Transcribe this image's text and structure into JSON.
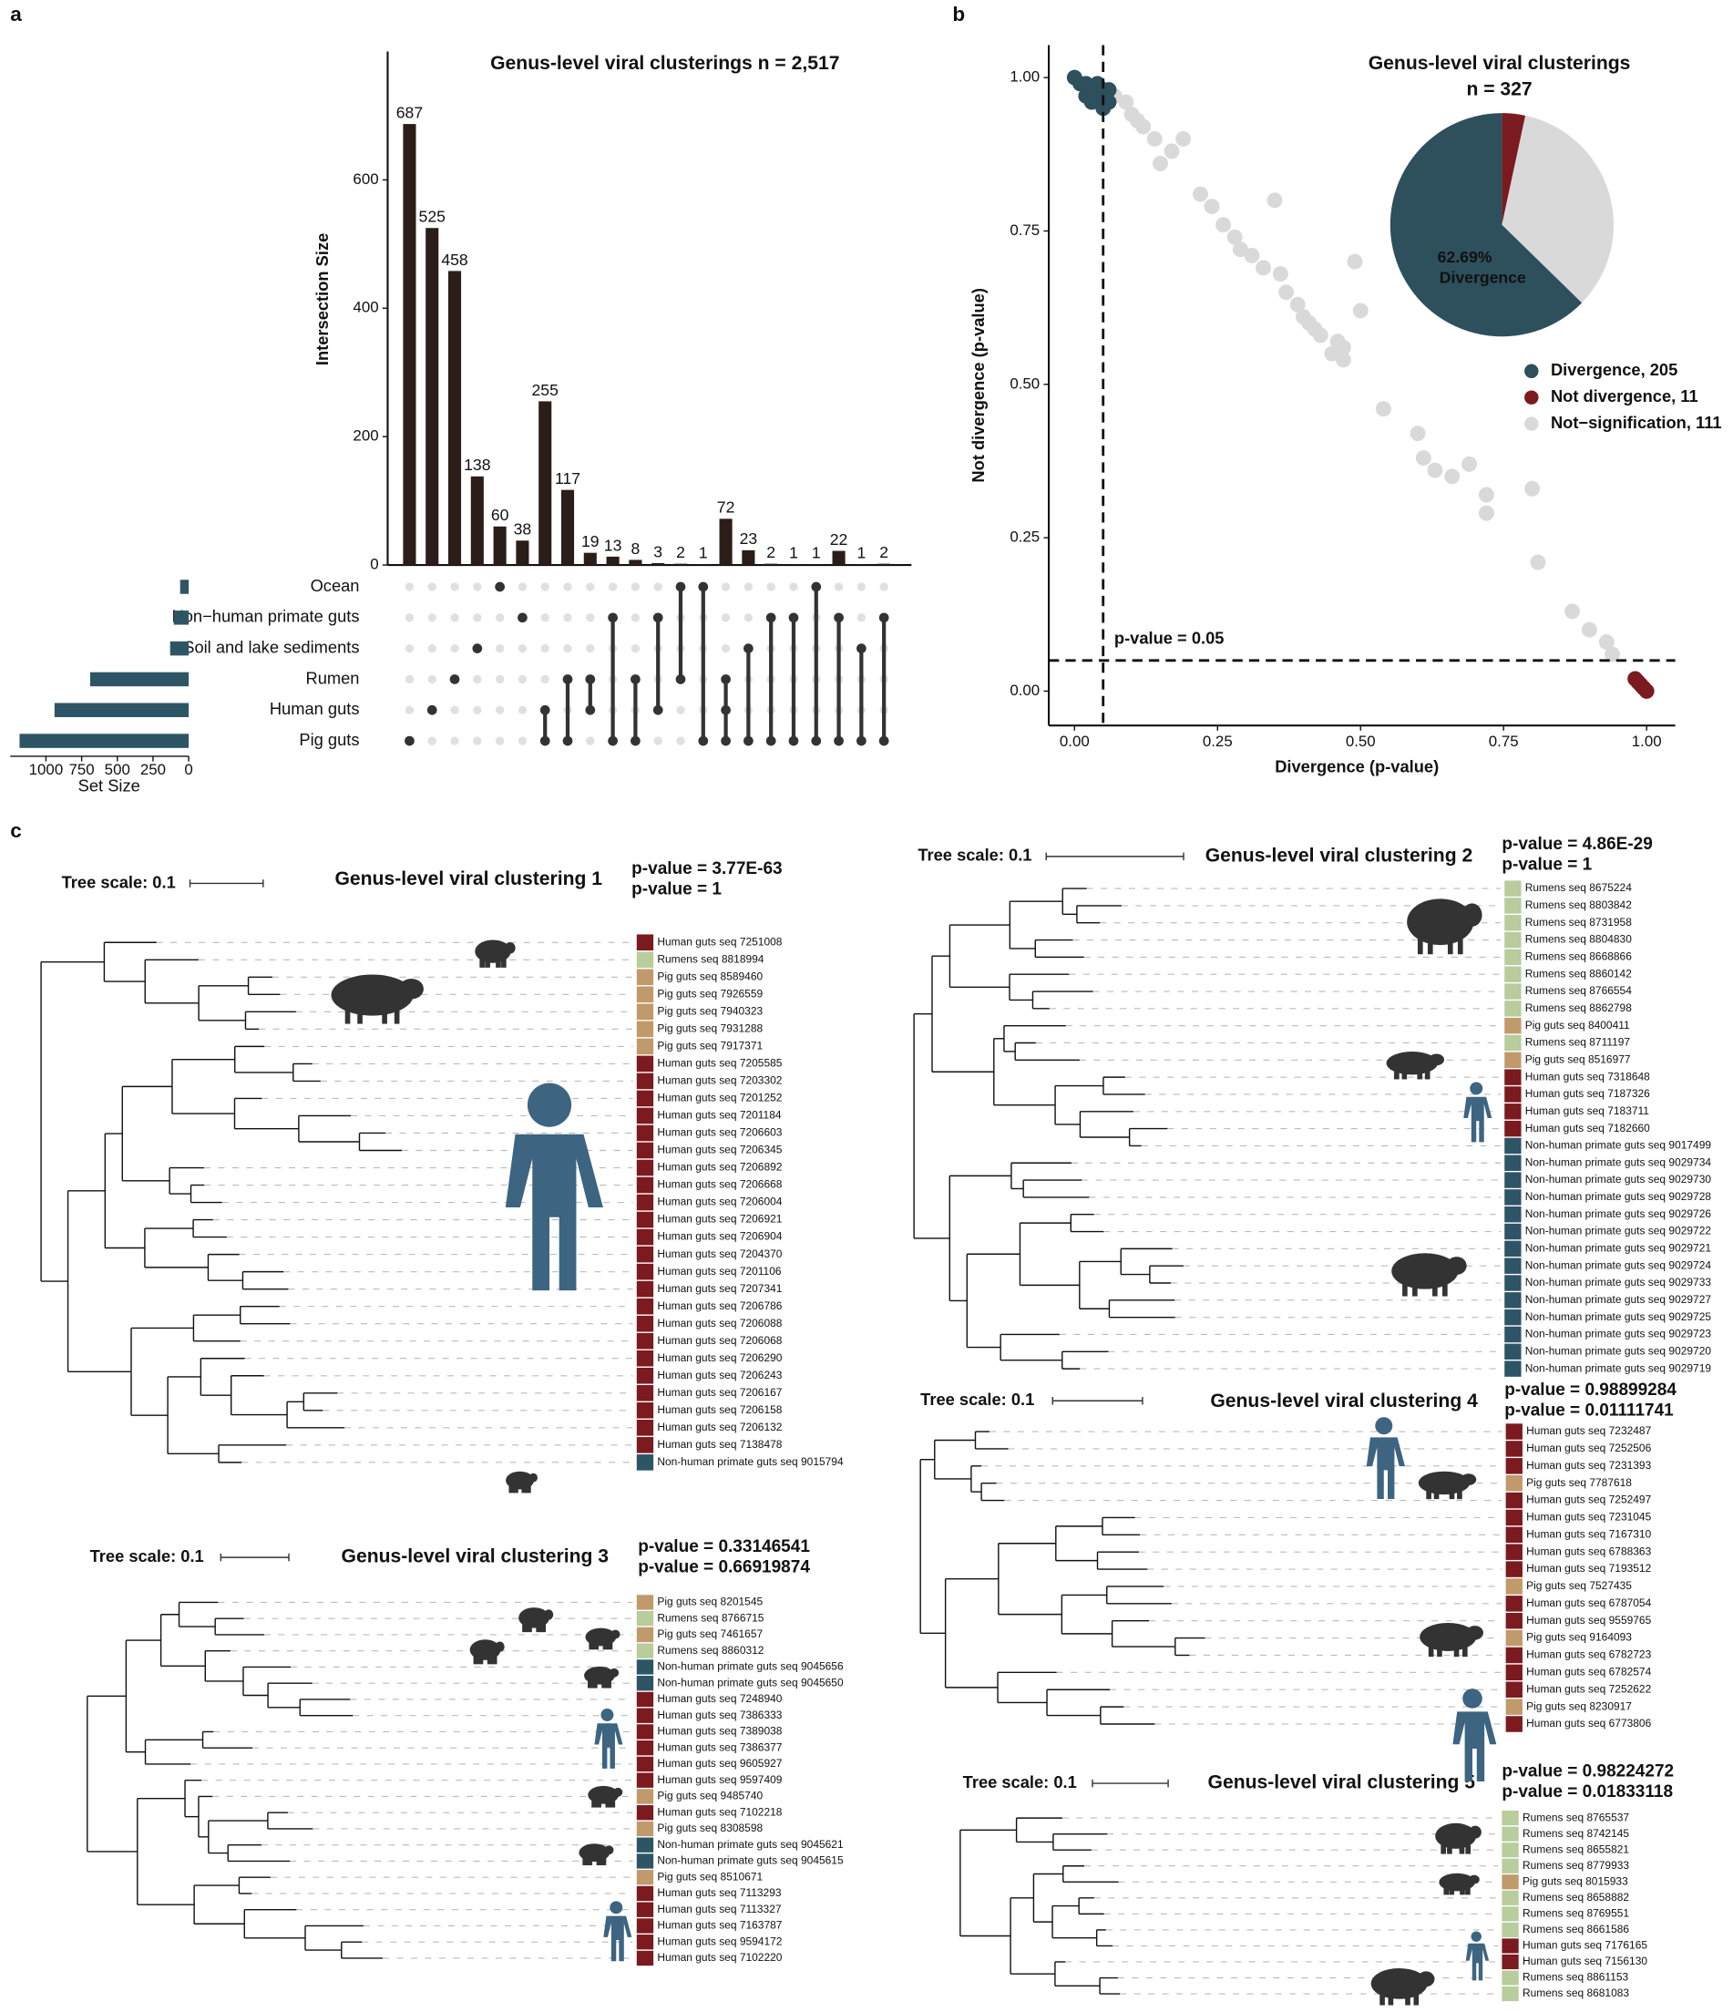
{
  "panel_labels": [
    "a",
    "b",
    "c"
  ],
  "chart_data": [
    {
      "type": "upset",
      "title": "Genus-level viral clusterings n = 2,517",
      "ylabel": "Intersection Size",
      "ylim": [
        0,
        800
      ],
      "yticks": [
        0,
        200,
        400,
        600
      ],
      "color": "#2b1d17",
      "values": [
        687,
        525,
        458,
        138,
        60,
        38,
        255,
        117,
        19,
        13,
        8,
        3,
        2,
        1,
        72,
        23,
        2,
        1,
        1,
        22,
        1,
        2
      ],
      "sets": [
        "Ocean",
        "Non−human primate guts",
        "Soil and lake sediments",
        "Rumen",
        "Human guts",
        "Pig guts"
      ],
      "set_sizes": [
        60,
        105,
        130,
        690,
        940,
        1185
      ],
      "set_color": "#2e5566",
      "set_xlim": [
        0,
        1250
      ],
      "set_xticks": [
        1000,
        750,
        500,
        250,
        0
      ],
      "set_xlabel": "Set Size",
      "matrix": [
        [
          5
        ],
        [
          4
        ],
        [
          3
        ],
        [
          2
        ],
        [
          0
        ],
        [
          1
        ],
        [
          4,
          5
        ],
        [
          3,
          5
        ],
        [
          3,
          4
        ],
        [
          1,
          5
        ],
        [
          3,
          5
        ],
        [
          1,
          4
        ],
        [
          0,
          3
        ],
        [
          0,
          5
        ],
        [
          3,
          4,
          5
        ],
        [
          2,
          5
        ],
        [
          1,
          5
        ],
        [
          1,
          5
        ],
        [
          0,
          5
        ],
        [
          1,
          5
        ],
        [
          2,
          5
        ],
        [
          1,
          5
        ]
      ]
    },
    {
      "type": "scatter",
      "title": "Genus-level viral clusterings",
      "subtitle": "n = 327",
      "xlabel": "Divergence (p-value)",
      "ylabel": "Not divergence (p-value)",
      "xlim": [
        -0.045,
        1.05
      ],
      "ylim": [
        -0.056,
        1.053
      ],
      "xticks": [
        {
          "value": 0,
          "label": "0.00"
        },
        {
          "value": 0.25,
          "label": "0.25"
        },
        {
          "value": 0.5,
          "label": "0.50"
        },
        {
          "value": 0.75,
          "label": "0.75"
        },
        {
          "value": 1,
          "label": "1.00"
        }
      ],
      "yticks": [
        {
          "value": 0,
          "label": "0.00"
        },
        {
          "value": 0.25,
          "label": "0.25"
        },
        {
          "value": 0.5,
          "label": "0.50"
        },
        {
          "value": 0.75,
          "label": "0.75"
        },
        {
          "value": 1,
          "label": "1.00"
        }
      ],
      "hlines": [
        0.05
      ],
      "vlines": [
        0.05
      ],
      "annotation": "p-value = 0.05",
      "series": [
        {
          "color": "#d9d9d9",
          "x": [
            0.07,
            0.09,
            0.1,
            0.11,
            0.12,
            0.14,
            0.15,
            0.17,
            0.19,
            0.22,
            0.24,
            0.26,
            0.28,
            0.29,
            0.31,
            0.33,
            0.35,
            0.36,
            0.37,
            0.39,
            0.4,
            0.41,
            0.42,
            0.43,
            0.45,
            0.46,
            0.47,
            0.47,
            0.49,
            0.5,
            0.54,
            0.6,
            0.61,
            0.63,
            0.66,
            0.69,
            0.72,
            0.72,
            0.8,
            0.81,
            0.87,
            0.9,
            0.93,
            0.94
          ],
          "y": [
            0.97,
            0.96,
            0.94,
            0.93,
            0.92,
            0.9,
            0.86,
            0.88,
            0.9,
            0.81,
            0.79,
            0.76,
            0.74,
            0.72,
            0.71,
            0.69,
            0.8,
            0.68,
            0.65,
            0.63,
            0.61,
            0.6,
            0.59,
            0.58,
            0.55,
            0.57,
            0.56,
            0.54,
            0.7,
            0.62,
            0.46,
            0.42,
            0.38,
            0.36,
            0.35,
            0.37,
            0.32,
            0.29,
            0.33,
            0.21,
            0.13,
            0.1,
            0.08,
            0.06
          ]
        },
        {
          "color": "#2e4f5c",
          "x": [
            0,
            0.01,
            0.02,
            0.02,
            0.03,
            0.03,
            0.04,
            0.04,
            0.05,
            0.05,
            0.06,
            0.06
          ],
          "y": [
            1,
            0.99,
            0.99,
            0.97,
            0.98,
            0.96,
            0.97,
            0.99,
            0.98,
            0.95,
            0.96,
            0.98
          ]
        },
        {
          "color": "#7b1a1f",
          "x": [
            0.98,
            0.985,
            0.99,
            0.995,
            1
          ],
          "y": [
            0.02,
            0.015,
            0.01,
            0.005,
            0
          ]
        }
      ],
      "pie": {
        "values": [
          205,
          11,
          111
        ],
        "colors": [
          "#2e4f5c",
          "#7b1a1f",
          "#d9d9d9"
        ],
        "legend_labels": [
          "Divergence, 205",
          "Not divergence, 11",
          "Not−signification, 111"
        ],
        "value_label": "62.69%",
        "label": "Divergence"
      }
    }
  ],
  "trees": [
    {
      "title": "Genus-level viral clustering 1",
      "scale_label": "Tree scale: 0.1",
      "pvalues": [
        {
          "text": "p-value = 3.77E-63",
          "color": "#2e5566"
        },
        {
          "text": "p-value = 1",
          "color": "#7b1a1f"
        }
      ],
      "leaves": [
        "Human guts seq 7251008",
        "Rumens seq 8818994",
        "Pig guts seq 8589460",
        "Pig guts seq 7926559",
        "Pig guts seq 7940323",
        "Pig guts seq 7931288",
        "Pig guts seq 7917371",
        "Human guts seq 7205585",
        "Human guts seq 7203302",
        "Human guts seq 7201252",
        "Human guts seq 7201184",
        "Human guts seq 7206603",
        "Human guts seq 7206345",
        "Human guts seq 7206892",
        "Human guts seq 7206668",
        "Human guts seq 7206004",
        "Human guts seq 7206921",
        "Human guts seq 7206904",
        "Human guts seq 7204370",
        "Human guts seq 7201106",
        "Human guts seq 7207341",
        "Human guts seq 7206786",
        "Human guts seq 7206088",
        "Human guts seq 7206068",
        "Human guts seq 7206290",
        "Human guts seq 7206243",
        "Human guts seq 7206167",
        "Human guts seq 7206158",
        "Human guts seq 7206132",
        "Human guts seq 7138478",
        "Non-human primate guts seq 9015794"
      ],
      "leaf_colors": [
        "#7b1a1f",
        "#b8cc9c",
        "#c09a6b",
        "#c09a6b",
        "#c09a6b",
        "#c09a6b",
        "#c09a6b",
        "#7b1a1f",
        "#7b1a1f",
        "#7b1a1f",
        "#7b1a1f",
        "#7b1a1f",
        "#7b1a1f",
        "#7b1a1f",
        "#7b1a1f",
        "#7b1a1f",
        "#7b1a1f",
        "#7b1a1f",
        "#7b1a1f",
        "#7b1a1f",
        "#7b1a1f",
        "#7b1a1f",
        "#7b1a1f",
        "#7b1a1f",
        "#7b1a1f",
        "#7b1a1f",
        "#7b1a1f",
        "#7b1a1f",
        "#7b1a1f",
        "#7b1a1f",
        "#2e5566"
      ]
    },
    {
      "title": "Genus-level viral clustering 2",
      "scale_label": "Tree scale: 0.1",
      "pvalues": [
        {
          "text": "p-value = 4.86E-29",
          "color": "#2e5566"
        },
        {
          "text": "p-value = 1",
          "color": "#7b1a1f"
        }
      ],
      "leaves": [
        "Rumens seq 8675224",
        "Rumens seq 8803842",
        "Rumens seq 8731958",
        "Rumens seq 8804830",
        "Rumens seq 8668866",
        "Rumens seq 8860142",
        "Rumens seq 8766554",
        "Rumens seq 8862798",
        "Pig guts seq 8400411",
        "Rumens seq 8711197",
        "Pig guts seq 8516977",
        "Human guts seq 7318648",
        "Human guts seq 7187326",
        "Human guts seq 7183711",
        "Human guts seq 7182660",
        "Non-human primate guts seq 9017499",
        "Non-human primate guts seq 9029734",
        "Non-human primate guts seq 9029730",
        "Non-human primate guts seq 9029728",
        "Non-human primate guts seq 9029726",
        "Non-human primate guts seq 9029722",
        "Non-human primate guts seq 9029721",
        "Non-human primate guts seq 9029724",
        "Non-human primate guts seq 9029733",
        "Non-human primate guts seq 9029727",
        "Non-human primate guts seq 9029725",
        "Non-human primate guts seq 9029723",
        "Non-human primate guts seq 9029720",
        "Non-human primate guts seq 9029719"
      ],
      "leaf_colors": [
        "#b8cc9c",
        "#b8cc9c",
        "#b8cc9c",
        "#b8cc9c",
        "#b8cc9c",
        "#b8cc9c",
        "#b8cc9c",
        "#b8cc9c",
        "#c09a6b",
        "#b8cc9c",
        "#c09a6b",
        "#7b1a1f",
        "#7b1a1f",
        "#7b1a1f",
        "#7b1a1f",
        "#2e5566",
        "#2e5566",
        "#2e5566",
        "#2e5566",
        "#2e5566",
        "#2e5566",
        "#2e5566",
        "#2e5566",
        "#2e5566",
        "#2e5566",
        "#2e5566",
        "#2e5566",
        "#2e5566",
        "#2e5566"
      ]
    },
    {
      "title": "Genus-level viral clustering 3",
      "scale_label": "Tree scale: 0.1",
      "pvalues": [
        {
          "text": "p-value = 0.33146541",
          "color": "#2e5566"
        },
        {
          "text": "p-value = 0.66919874",
          "color": "#7b1a1f"
        }
      ],
      "leaves": [
        "Pig guts seq 8201545",
        "Rumens seq 8766715",
        "Pig guts seq 7461657",
        "Rumens seq 8860312",
        "Non-human primate guts seq 9045656",
        "Non-human primate guts seq 9045650",
        "Human guts seq 7248940",
        "Human guts seq 7386333",
        "Human guts seq 7389038",
        "Human guts seq 7386377",
        "Human guts seq 9605927",
        "Human guts seq 9597409",
        "Pig guts seq 9485740",
        "Human guts seq 7102218",
        "Pig guts seq 8308598",
        "Non-human primate guts seq 9045621",
        "Non-human primate guts seq 9045615",
        "Pig guts seq 8510671",
        "Human guts seq 7113293",
        "Human guts seq 7113327",
        "Human guts seq 7163787",
        "Human guts seq 9594172",
        "Human guts seq 7102220"
      ],
      "leaf_colors": [
        "#c09a6b",
        "#b8cc9c",
        "#c09a6b",
        "#b8cc9c",
        "#2e5566",
        "#2e5566",
        "#7b1a1f",
        "#7b1a1f",
        "#7b1a1f",
        "#7b1a1f",
        "#7b1a1f",
        "#7b1a1f",
        "#c09a6b",
        "#7b1a1f",
        "#c09a6b",
        "#2e5566",
        "#2e5566",
        "#c09a6b",
        "#7b1a1f",
        "#7b1a1f",
        "#7b1a1f",
        "#7b1a1f",
        "#7b1a1f"
      ]
    },
    {
      "title": "Genus-level viral clustering 4",
      "scale_label": "Tree scale: 0.1",
      "pvalues": [
        {
          "text": "p-value = 0.98899284",
          "color": "#2e5566"
        },
        {
          "text": "p-value = 0.01111741",
          "color": "#7b1a1f"
        }
      ],
      "leaves": [
        "Human guts seq 7232487",
        "Human guts seq 7252506",
        "Human guts seq 7231393",
        "Pig guts seq 7787618",
        "Human guts seq 7252497",
        "Human guts seq 7231045",
        "Human guts seq 7167310",
        "Human guts seq 6788363",
        "Human guts seq 7193512",
        "Pig guts seq 7527435",
        "Human guts seq 6787054",
        "Human guts seq 9559765",
        "Pig guts seq 9164093",
        "Human guts seq 6782723",
        "Human guts seq 6782574",
        "Human guts seq 7252622",
        "Pig guts seq 8230917",
        "Human guts seq 6773806"
      ],
      "leaf_colors": [
        "#7b1a1f",
        "#7b1a1f",
        "#7b1a1f",
        "#c09a6b",
        "#7b1a1f",
        "#7b1a1f",
        "#7b1a1f",
        "#7b1a1f",
        "#7b1a1f",
        "#c09a6b",
        "#7b1a1f",
        "#7b1a1f",
        "#c09a6b",
        "#7b1a1f",
        "#7b1a1f",
        "#7b1a1f",
        "#c09a6b",
        "#7b1a1f"
      ]
    },
    {
      "title": "Genus-level viral clustering 5",
      "scale_label": "Tree scale: 0.1",
      "pvalues": [
        {
          "text": "p-value = 0.98224272",
          "color": "#2e5566"
        },
        {
          "text": "p-value = 0.01833118",
          "color": "#7b1a1f"
        }
      ],
      "leaves": [
        "Rumens seq 8765537",
        "Rumens seq 8742145",
        "Rumens seq 8655821",
        "Rumens seq 8779933",
        "Pig guts seq 8015933",
        "Rumens seq 8658882",
        "Rumens seq 8769551",
        "Rumens seq 8661586",
        "Human guts seq 7176165",
        "Human guts seq 7156130",
        "Rumens seq 8861153",
        "Rumens seq 8681083"
      ],
      "leaf_colors": [
        "#b8cc9c",
        "#b8cc9c",
        "#b8cc9c",
        "#b8cc9c",
        "#c09a6b",
        "#b8cc9c",
        "#b8cc9c",
        "#b8cc9c",
        "#7b1a1f",
        "#7b1a1f",
        "#b8cc9c",
        "#b8cc9c"
      ]
    }
  ]
}
